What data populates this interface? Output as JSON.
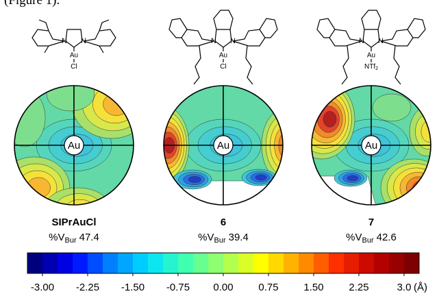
{
  "header_text": "(Figure 1).",
  "panels": [
    {
      "label": "SIPrAuCl",
      "center": "Au",
      "vbur_prefix": "%V",
      "vbur_sub": "Bur",
      "vbur_value": "47.4",
      "atoms": {
        "n1": "N",
        "n2": "N",
        "metal": "Au",
        "ligand": "Cl"
      }
    },
    {
      "label": "6",
      "center": "Au",
      "vbur_prefix": "%V",
      "vbur_sub": "Bur",
      "vbur_value": "39.4",
      "atoms": {
        "n1": "N",
        "n2": "N",
        "metal": "Au",
        "ligand": "Cl"
      }
    },
    {
      "label": "7",
      "center": "Au",
      "vbur_prefix": "%V",
      "vbur_sub": "Bur",
      "vbur_value": "42.6",
      "atoms": {
        "n1": "N",
        "n2": "N",
        "metal": "Au",
        "ligand": "NTf",
        "ligand_sub": "2"
      }
    }
  ],
  "colorbar": {
    "range": [
      -3.25,
      3.25
    ],
    "ticks": [
      {
        "value": -3,
        "label": "-3.00"
      },
      {
        "value": -2.25,
        "label": "-2.25"
      },
      {
        "value": -1.5,
        "label": "-1.50"
      },
      {
        "value": -0.75,
        "label": "-0.75"
      },
      {
        "value": 0,
        "label": "0.00"
      },
      {
        "value": 0.75,
        "label": "0.75"
      },
      {
        "value": 1.5,
        "label": "1.50"
      },
      {
        "value": 2.25,
        "label": "2.25"
      },
      {
        "value": 3,
        "label": "3.0"
      }
    ],
    "unit": "(Å)"
  }
}
